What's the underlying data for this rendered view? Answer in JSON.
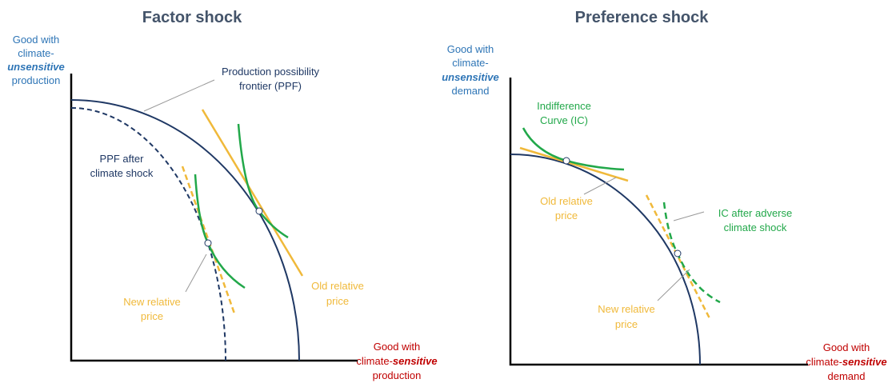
{
  "panels": [
    {
      "title": "Factor shock",
      "y_axis_label": {
        "lines": [
          "Good with",
          "climate-",
          "unsensitive",
          "production"
        ]
      },
      "x_axis_label": {
        "line1": "Good with",
        "prefix": "climate-",
        "emphasis": "sensitive",
        "line3": "production"
      },
      "annotations": {
        "ppf": [
          "Production possibility",
          "frontier (PPF)"
        ],
        "ppf_after": [
          "PPF after",
          "climate shock"
        ],
        "new_price": [
          "New relative",
          "price"
        ],
        "old_price": [
          "Old relative",
          "price"
        ]
      }
    },
    {
      "title": "Preference shock",
      "y_axis_label": {
        "lines": [
          "Good with",
          "climate-",
          "unsensitive",
          "demand"
        ]
      },
      "x_axis_label": {
        "line1": "Good with",
        "prefix": "climate-",
        "emphasis": "sensitive",
        "line3": "demand"
      },
      "annotations": {
        "ic": [
          "Indifference",
          "Curve (IC)"
        ],
        "old_price": [
          "Old relative",
          "price"
        ],
        "ic_after": [
          "IC after adverse",
          "climate shock"
        ],
        "new_price": [
          "New relative",
          "price"
        ]
      }
    }
  ]
}
